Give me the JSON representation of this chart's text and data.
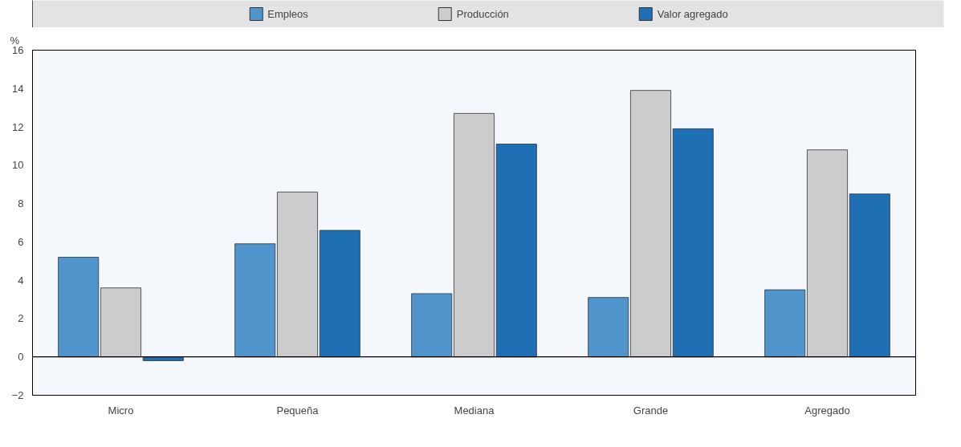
{
  "chart_data": {
    "type": "bar",
    "ylabel": "%",
    "categories": [
      "Micro",
      "Pequeña",
      "Mediana",
      "Grande",
      "Agregado"
    ],
    "series": [
      {
        "name": "Empleos",
        "color": "#4f95cc",
        "values": [
          5.2,
          5.9,
          3.3,
          3.1,
          3.5
        ]
      },
      {
        "name": "Producción",
        "color": "#cccccc",
        "values": [
          3.6,
          8.6,
          12.7,
          13.9,
          10.8
        ]
      },
      {
        "name": "Valor agregado",
        "color": "#1f6fb4",
        "values": [
          -0.2,
          6.6,
          11.1,
          11.9,
          8.5
        ]
      }
    ],
    "ylim": [
      -2,
      16
    ],
    "yticks": [
      -2,
      0,
      2,
      4,
      6,
      8,
      10,
      12,
      14,
      16
    ],
    "legend": "top"
  }
}
